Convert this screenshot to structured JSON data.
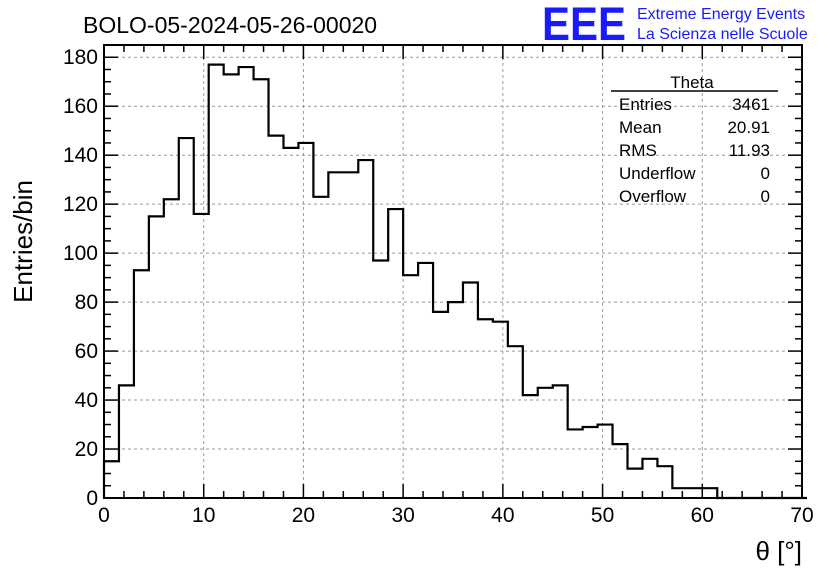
{
  "chart_data": {
    "type": "bar",
    "title": "BOLO-05-2024-05-26-00020",
    "xlabel": "θ [°]",
    "ylabel": "Entries/bin",
    "xlim": [
      0,
      70
    ],
    "ylim": [
      0,
      185
    ],
    "x_ticks": [
      0,
      10,
      20,
      30,
      40,
      50,
      60,
      70
    ],
    "y_ticks": [
      0,
      20,
      40,
      60,
      80,
      100,
      120,
      140,
      160,
      180
    ],
    "bin_width": 1.5,
    "values": [
      15,
      46,
      93,
      115,
      122,
      147,
      116,
      177,
      173,
      176,
      171,
      148,
      143,
      145,
      123,
      133,
      133,
      138,
      97,
      118,
      91,
      96,
      76,
      80,
      88,
      73,
      72,
      62,
      42,
      45,
      46,
      28,
      29,
      30,
      22,
      12,
      16,
      13,
      4,
      4,
      4,
      0,
      0,
      0,
      0,
      0,
      0
    ],
    "grid": true,
    "stats_box": {
      "title": "Theta",
      "rows": [
        {
          "label": "Entries",
          "value": "3461"
        },
        {
          "label": "Mean",
          "value": "20.91"
        },
        {
          "label": "RMS",
          "value": "11.93"
        },
        {
          "label": "Underflow",
          "value": "0"
        },
        {
          "label": "Overflow",
          "value": "0"
        }
      ]
    }
  },
  "branding": {
    "logo": "EEE",
    "line1": "Extreme Energy Events",
    "line2": "La Scienza nelle Scuole",
    "color": "#1a1aff"
  }
}
